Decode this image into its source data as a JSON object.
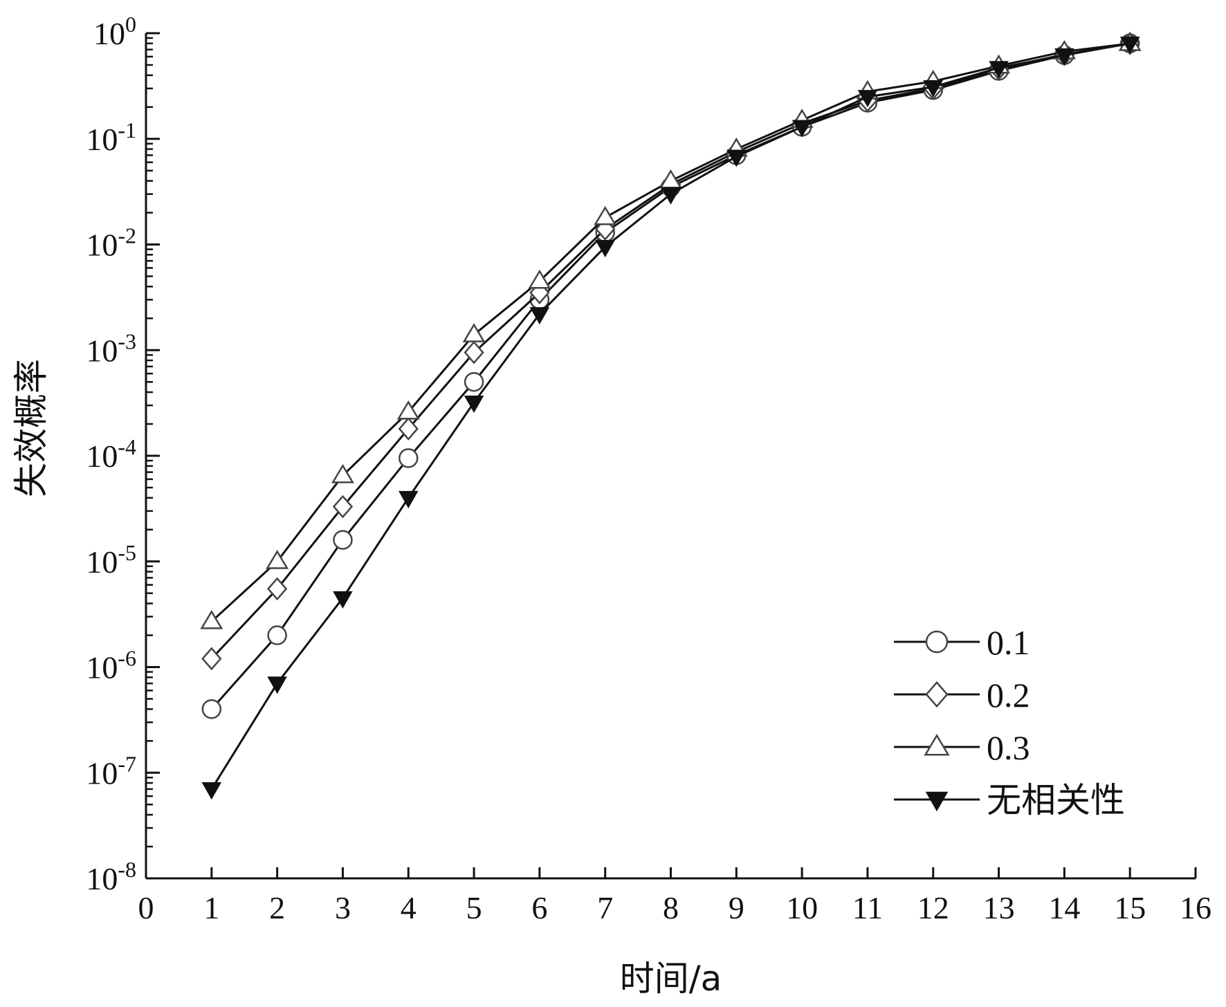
{
  "chart_data": {
    "type": "line",
    "title": "",
    "xlabel": "时间/a",
    "ylabel": "失效概率",
    "xlim": [
      0,
      16
    ],
    "ylim": [
      1e-08,
      1
    ],
    "y_scale": "log",
    "x_ticks": [
      "0",
      "1",
      "2",
      "3",
      "4",
      "5",
      "6",
      "7",
      "8",
      "9",
      "10",
      "11",
      "12",
      "13",
      "14",
      "15",
      "16"
    ],
    "y_tick_exponents": [
      "0",
      "-1",
      "-2",
      "-3",
      "-4",
      "-5",
      "-6",
      "-7",
      "-8"
    ],
    "y_tick_base": "10",
    "grid": false,
    "legend_position": "lower-right",
    "x": [
      1,
      2,
      3,
      4,
      5,
      6,
      7,
      8,
      9,
      10,
      11,
      12,
      13,
      14,
      15
    ],
    "series": [
      {
        "name": "0.1",
        "marker": "circle-open",
        "values": [
          4e-07,
          2e-06,
          1.6e-05,
          9.5e-05,
          0.0005,
          0.003,
          0.013,
          0.035,
          0.07,
          0.13,
          0.22,
          0.29,
          0.44,
          0.62,
          0.8
        ]
      },
      {
        "name": "0.2",
        "marker": "diamond-open",
        "values": [
          1.2e-06,
          5.5e-06,
          3.3e-05,
          0.00018,
          0.00095,
          0.0035,
          0.014,
          0.037,
          0.075,
          0.14,
          0.23,
          0.3,
          0.46,
          0.63,
          0.8
        ]
      },
      {
        "name": "0.3",
        "marker": "triangle-open",
        "values": [
          2.7e-06,
          1e-05,
          6.5e-05,
          0.00026,
          0.0014,
          0.0045,
          0.018,
          0.04,
          0.08,
          0.15,
          0.28,
          0.35,
          0.49,
          0.67,
          0.8
        ]
      },
      {
        "name": "无相关性",
        "marker": "triangle-down-filled",
        "values": [
          7e-08,
          7e-07,
          4.5e-06,
          4e-05,
          0.00032,
          0.0022,
          0.0095,
          0.03,
          0.068,
          0.13,
          0.25,
          0.31,
          0.47,
          0.62,
          0.8
        ]
      }
    ]
  }
}
